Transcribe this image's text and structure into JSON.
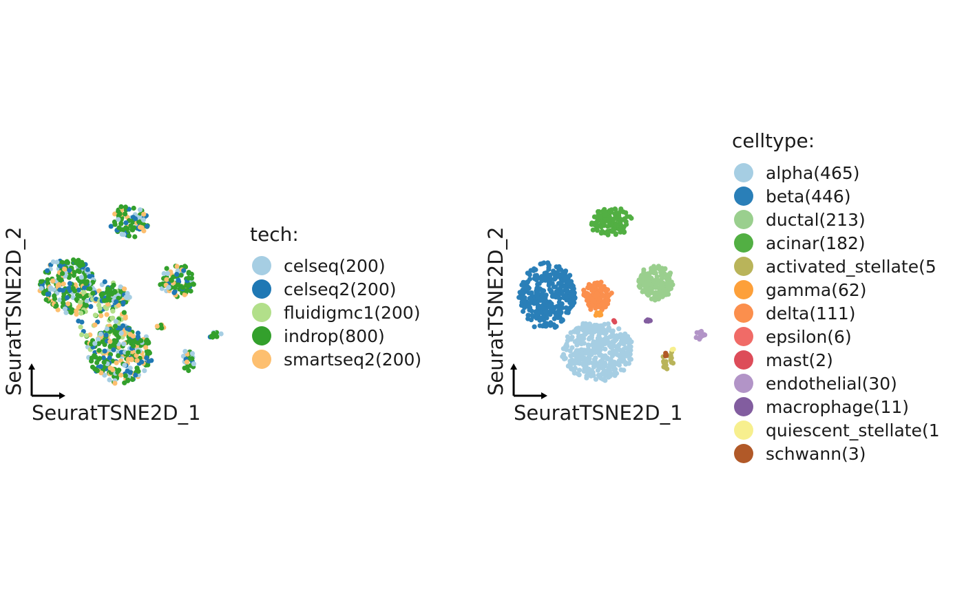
{
  "chart_data": [
    {
      "type": "scatter",
      "xlabel": "SeuratTSNE2D_1",
      "ylabel": "SeuratTSNE2D_2",
      "legend_title": "tech:",
      "legend_placement": "right",
      "grid": false,
      "series": [
        {
          "name": "celseq(200)",
          "color": "#A6CEE3"
        },
        {
          "name": "celseq2(200)",
          "color": "#1F78B4"
        },
        {
          "name": "fluidigmc1(200)",
          "color": "#B2DF8A"
        },
        {
          "name": "indrop(800)",
          "color": "#33A02C"
        },
        {
          "name": "smartseq2(200)",
          "color": "#FDBF6F"
        }
      ]
    },
    {
      "type": "scatter",
      "xlabel": "SeuratTSNE2D_1",
      "ylabel": "SeuratTSNE2D_2",
      "legend_title": "celltype:",
      "legend_placement": "right",
      "grid": false,
      "series": [
        {
          "name": "alpha(465)",
          "color": "#A6CEE3"
        },
        {
          "name": "beta(446)",
          "color": "#2A7FB8"
        },
        {
          "name": "ductal(213)",
          "color": "#9ACF8E"
        },
        {
          "name": "acinar(182)",
          "color": "#52AF43"
        },
        {
          "name": "activated_stellate(5",
          "color": "#B9B45A"
        },
        {
          "name": "gamma(62)",
          "color": "#FDA03A"
        },
        {
          "name": "delta(111)",
          "color": "#FB8F4D"
        },
        {
          "name": "epsilon(6)",
          "color": "#F06B67"
        },
        {
          "name": "mast(2)",
          "color": "#DD4C59"
        },
        {
          "name": "endothelial(30)",
          "color": "#B294C7"
        },
        {
          "name": "macrophage(11)",
          "color": "#825D9F"
        },
        {
          "name": "quiescent_stellate(1",
          "color": "#F7EF8E"
        },
        {
          "name": "schwann(3)",
          "color": "#B15928"
        }
      ]
    }
  ]
}
